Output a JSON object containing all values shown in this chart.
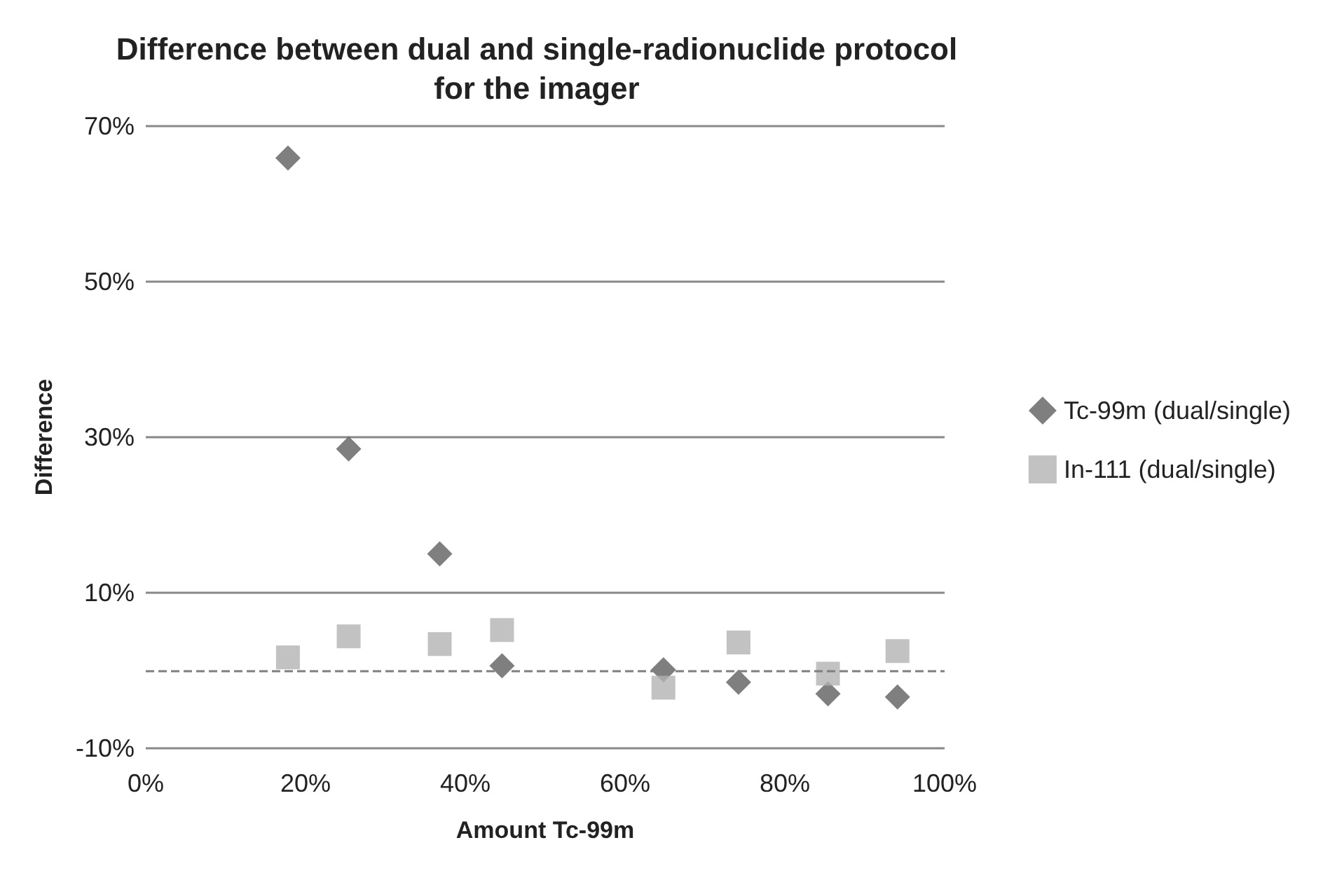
{
  "chart_data": {
    "type": "scatter",
    "title": "Difference between dual and single-radionuclide protocol\nfor the imager",
    "xlabel": "Amount Tc-99m",
    "ylabel": "Difference",
    "series": [
      {
        "name": "Tc-99m (dual/single)",
        "color": "#5f5f5f",
        "marker": "diamond",
        "x": [
          17.8,
          25.4,
          36.8,
          44.6,
          64.8,
          74.2,
          85.4,
          94.1
        ],
        "values": [
          65.9,
          28.5,
          15.0,
          0.6,
          0.1,
          -1.5,
          -3.0,
          -3.4
        ]
      },
      {
        "name": "In-111 (dual/single)",
        "color": "#b3b3b3",
        "marker": "square",
        "x": [
          17.8,
          25.4,
          36.8,
          44.6,
          64.8,
          74.2,
          85.4,
          94.1
        ],
        "values": [
          1.7,
          4.4,
          3.4,
          5.2,
          -2.2,
          3.6,
          -0.4,
          2.5
        ]
      }
    ],
    "xlim": [
      0,
      100
    ],
    "xticks": [
      {
        "value": 0,
        "label": "0%"
      },
      {
        "value": 20,
        "label": "20%"
      },
      {
        "value": 40,
        "label": "40%"
      },
      {
        "value": 60,
        "label": "60%"
      },
      {
        "value": 80,
        "label": "80%"
      },
      {
        "value": 100,
        "label": "100%"
      }
    ],
    "ylim": [
      -10,
      70
    ],
    "yticks": [
      {
        "value": -10,
        "label": "-10%"
      },
      {
        "value": 10,
        "label": "10%"
      },
      {
        "value": 30,
        "label": "30%"
      },
      {
        "value": 50,
        "label": "50%"
      },
      {
        "value": 70,
        "label": "70%"
      }
    ],
    "ref_lines": [
      {
        "axis": "y",
        "value": 0,
        "label": null,
        "color": "#7f7f7f",
        "line_style": "dashed"
      }
    ],
    "grid": "y",
    "legend": "right"
  }
}
